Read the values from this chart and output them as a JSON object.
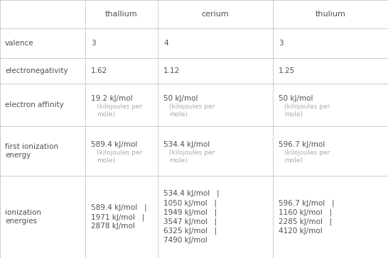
{
  "columns": [
    "",
    "thallium",
    "cerium",
    "thulium"
  ],
  "rows": [
    {
      "label": "valence",
      "cells": [
        {
          "main": "3",
          "sub": ""
        },
        {
          "main": "4",
          "sub": ""
        },
        {
          "main": "3",
          "sub": ""
        }
      ]
    },
    {
      "label": "electronegativity",
      "cells": [
        {
          "main": "1.62",
          "sub": ""
        },
        {
          "main": "1.12",
          "sub": ""
        },
        {
          "main": "1.25",
          "sub": ""
        }
      ]
    },
    {
      "label": "electron affinity",
      "cells": [
        {
          "main": "19.2 kJ/mol",
          "sub": "(kilojoules per\nmole)"
        },
        {
          "main": "50 kJ/mol",
          "sub": "(kilojoules per\nmole)"
        },
        {
          "main": "50 kJ/mol",
          "sub": "(kilojoules per\nmole)"
        }
      ]
    },
    {
      "label": "first ionization\nenergy",
      "cells": [
        {
          "main": "589.4 kJ/mol",
          "sub": "(kilojoules per\nmole)"
        },
        {
          "main": "534.4 kJ/mol",
          "sub": "(kilojoules per\nmole)"
        },
        {
          "main": "596.7 kJ/mol",
          "sub": "(kilojoules per\nmole)"
        }
      ]
    },
    {
      "label": "ionization\nenergies",
      "cells": [
        {
          "main": "589.4 kJ/mol   |\n1971 kJ/mol   |\n2878 kJ/mol",
          "sub": ""
        },
        {
          "main": "534.4 kJ/mol   |\n1050 kJ/mol   |\n1949 kJ/mol   |\n3547 kJ/mol   |\n6325 kJ/mol   |\n7490 kJ/mol",
          "sub": ""
        },
        {
          "main": "596.7 kJ/mol   |\n1160 kJ/mol   |\n2285 kJ/mol   |\n4120 kJ/mol",
          "sub": ""
        }
      ]
    }
  ],
  "grid_color": "#cccccc",
  "text_color_main": "#505050",
  "text_color_sub": "#aaaaaa",
  "text_color_header": "#505050",
  "bg_color": "#ffffff",
  "fig_width": 5.46,
  "fig_height": 3.64,
  "dpi": 100
}
